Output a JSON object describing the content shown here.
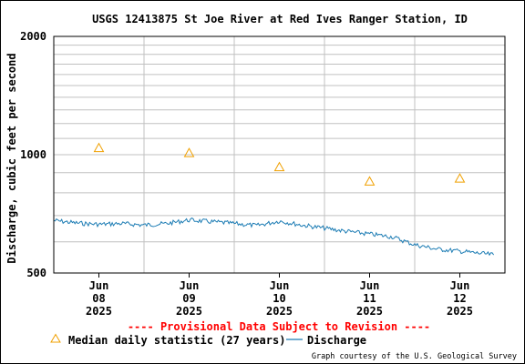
{
  "chart_data": {
    "type": "line",
    "title": "USGS 12413875 St Joe River at Red Ives Ranger Station, ID",
    "ylabel": "Discharge, cubic feet per second",
    "xlabel": "",
    "ylim": [
      500,
      2000
    ],
    "y_scale": "log",
    "y_tick_labels": [
      "2000",
      "1000",
      "500"
    ],
    "y_ticks": [
      2000,
      1000,
      500
    ],
    "x_range": [
      "2025-06-07T12:00",
      "2025-06-12T12:00"
    ],
    "x_tick_labels": [
      {
        "month": "Jun",
        "day": "08",
        "year": "2025"
      },
      {
        "month": "Jun",
        "day": "09",
        "year": "2025"
      },
      {
        "month": "Jun",
        "day": "10",
        "year": "2025"
      },
      {
        "month": "Jun",
        "day": "11",
        "year": "2025"
      },
      {
        "month": "Jun",
        "day": "12",
        "year": "2025"
      }
    ],
    "grid": true,
    "series": [
      {
        "name": "Median daily statistic (27 years)",
        "marker": "triangle",
        "color": "#f0a000",
        "points": [
          {
            "x": "2025-06-08",
            "y": 1040
          },
          {
            "x": "2025-06-09",
            "y": 1010
          },
          {
            "x": "2025-06-10",
            "y": 930
          },
          {
            "x": "2025-06-11",
            "y": 855
          },
          {
            "x": "2025-06-12",
            "y": 870
          }
        ]
      },
      {
        "name": "Discharge",
        "color": "#1c7cb4",
        "points": [
          {
            "x": "2025-06-07T12:00",
            "y": 680
          },
          {
            "x": "2025-06-07T18:00",
            "y": 670
          },
          {
            "x": "2025-06-08T00:00",
            "y": 665
          },
          {
            "x": "2025-06-08T06:00",
            "y": 668
          },
          {
            "x": "2025-06-08T12:00",
            "y": 662
          },
          {
            "x": "2025-06-08T18:00",
            "y": 668
          },
          {
            "x": "2025-06-09T00:00",
            "y": 682
          },
          {
            "x": "2025-06-09T06:00",
            "y": 675
          },
          {
            "x": "2025-06-09T12:00",
            "y": 668
          },
          {
            "x": "2025-06-09T18:00",
            "y": 660
          },
          {
            "x": "2025-06-10T00:00",
            "y": 678
          },
          {
            "x": "2025-06-10T06:00",
            "y": 662
          },
          {
            "x": "2025-06-10T12:00",
            "y": 650
          },
          {
            "x": "2025-06-10T18:00",
            "y": 638
          },
          {
            "x": "2025-06-11T00:00",
            "y": 628
          },
          {
            "x": "2025-06-11T06:00",
            "y": 618
          },
          {
            "x": "2025-06-11T12:00",
            "y": 590
          },
          {
            "x": "2025-06-11T18:00",
            "y": 575
          },
          {
            "x": "2025-06-12T00:00",
            "y": 568
          },
          {
            "x": "2025-06-12T06:00",
            "y": 560
          },
          {
            "x": "2025-06-12T09:00",
            "y": 556
          }
        ]
      }
    ],
    "legend_position": "bottom",
    "legend_items": {
      "median": "Median daily statistic (27 years)",
      "discharge": "Discharge"
    },
    "annotations": {
      "provisional": "---- Provisional Data Subject to Revision ----",
      "credit": "Graph courtesy of the U.S. Geological Survey"
    }
  },
  "colors": {
    "axis": "#000000",
    "grid": "#c0c0c0",
    "median": "#f0a000",
    "discharge": "#1c7cb4",
    "provisional": "#ff0000"
  }
}
